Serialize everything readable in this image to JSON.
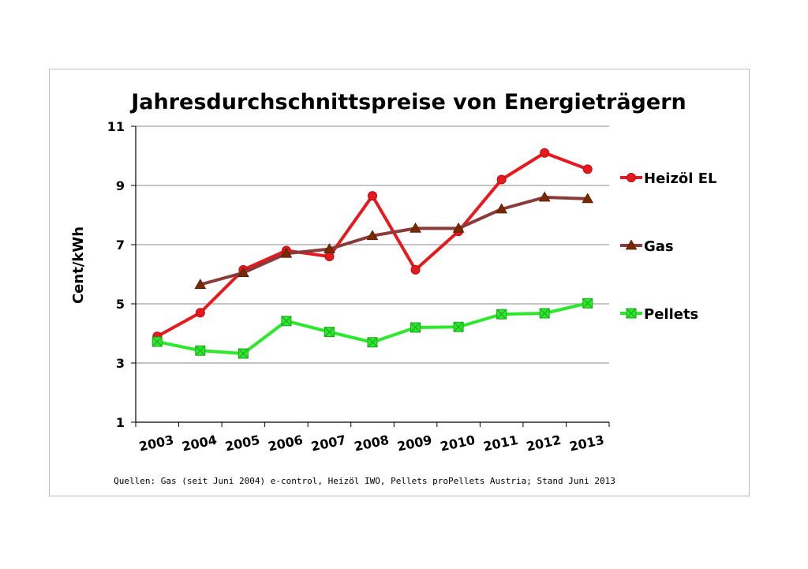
{
  "chart_data": {
    "type": "line",
    "title": "Jahresdurchschnittspreise von Energieträgern",
    "ylabel": "Cent/kWh",
    "xlabel": "",
    "categories": [
      "2003",
      "2004",
      "2005",
      "2006",
      "2007",
      "2008",
      "2009",
      "2010",
      "2011",
      "2012",
      "2013"
    ],
    "ylim": [
      1,
      11
    ],
    "yticks": [
      1,
      3,
      5,
      7,
      9,
      11
    ],
    "grid": true,
    "legend_position": "right",
    "series": [
      {
        "name": "Heizöl EL",
        "color": "#e8191e",
        "marker": "circle",
        "values": [
          3.9,
          4.7,
          6.15,
          6.8,
          6.6,
          8.65,
          6.15,
          7.45,
          9.2,
          10.1,
          9.55
        ]
      },
      {
        "name": "Gas",
        "color": "#8b3a3a",
        "marker": "triangle",
        "values": [
          null,
          5.65,
          6.05,
          6.7,
          6.85,
          7.3,
          7.55,
          7.55,
          8.2,
          8.6,
          8.55
        ]
      },
      {
        "name": "Pellets",
        "color": "#2ee82e",
        "marker": "square",
        "values": [
          3.72,
          3.42,
          3.32,
          4.42,
          4.05,
          3.7,
          4.2,
          4.22,
          4.65,
          4.68,
          5.02
        ]
      }
    ],
    "source": "Quellen: Gas (seit Juni 2004) e-control, Heizöl IWO, Pellets proPellets Austria; Stand Juni 2013"
  }
}
